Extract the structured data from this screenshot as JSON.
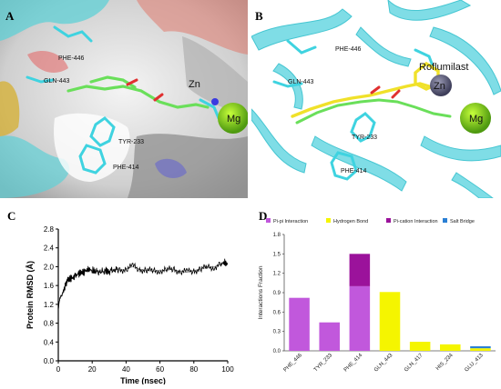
{
  "panels": {
    "A": {
      "letter": "A",
      "labels": {
        "phe446": "PHE-446",
        "gln443": "GLN-443",
        "tyr233": "TYR-233",
        "phe414": "PHE-414",
        "zn": "Zn",
        "mg": "Mg"
      }
    },
    "B": {
      "letter": "B",
      "labels": {
        "phe446": "PHE-446",
        "gln443": "GLN-443",
        "tyr233": "TYR-233",
        "phe414": "PHE-414",
        "zn": "Zn",
        "mg": "Mg",
        "roflumilast": "Roflumilast"
      }
    },
    "C": {
      "letter": "C"
    },
    "D": {
      "letter": "D"
    }
  },
  "chart_data": [
    {
      "type": "line",
      "panel": "C",
      "xlabel": "Time (nsec)",
      "ylabel": "Protein RMSD (Å)",
      "xlim": [
        0,
        100
      ],
      "ylim": [
        0,
        2.8
      ],
      "xticks": [
        "0",
        "20",
        "40",
        "60",
        "80",
        "100"
      ],
      "yticks": [
        "0.0",
        "0.4",
        "0.8",
        "1.2",
        "1.6",
        "2.0",
        "2.4",
        "2.8"
      ],
      "series": [
        {
          "color": "#000000",
          "x": [
            0,
            1,
            2,
            3,
            4,
            5,
            6,
            8,
            10,
            12,
            14,
            16,
            18,
            20,
            22,
            25,
            28,
            30,
            33,
            36,
            40,
            44,
            48,
            52,
            56,
            60,
            64,
            68,
            72,
            76,
            80,
            84,
            88,
            92,
            96,
            98,
            100
          ],
          "y": [
            1.1,
            1.35,
            1.4,
            1.5,
            1.6,
            1.65,
            1.72,
            1.75,
            1.8,
            1.85,
            1.88,
            1.9,
            1.95,
            1.92,
            1.9,
            1.88,
            1.92,
            1.9,
            1.95,
            1.93,
            1.95,
            2.0,
            1.95,
            1.92,
            1.9,
            1.93,
            1.92,
            1.95,
            1.9,
            1.88,
            1.92,
            1.95,
            1.98,
            2.0,
            2.05,
            2.1,
            2.05
          ]
        }
      ],
      "grid": false
    },
    {
      "type": "bar",
      "panel": "D",
      "ylabel": "Interactions Fraction",
      "ylim": [
        0,
        1.8
      ],
      "yticks": [
        "0.0",
        "0.3",
        "0.6",
        "0.9",
        "1.2",
        "1.5",
        "1.8"
      ],
      "categories": [
        "PHE_446",
        "TYR_233",
        "PHE_414",
        "GLN_443",
        "GLN_417",
        "HIS_234",
        "GLU_413"
      ],
      "series": [
        {
          "name": "Pi-pi Interaction",
          "color": "#c158dc",
          "values": [
            0.82,
            0.44,
            1.0,
            0,
            0,
            0,
            0
          ]
        },
        {
          "name": "Hydrogen Bond",
          "color": "#f5f500",
          "values": [
            0,
            0,
            0,
            0.91,
            0.14,
            0.1,
            0.04
          ]
        },
        {
          "name": "Pi-cation Interaction",
          "color": "#9b129b",
          "values": [
            0,
            0,
            0.5,
            0,
            0,
            0,
            0
          ]
        },
        {
          "name": "Salt Bridge",
          "color": "#2a7fd4",
          "values": [
            0,
            0,
            0,
            0,
            0,
            0,
            0.03
          ]
        }
      ],
      "stacked": true,
      "legend": "top"
    }
  ]
}
